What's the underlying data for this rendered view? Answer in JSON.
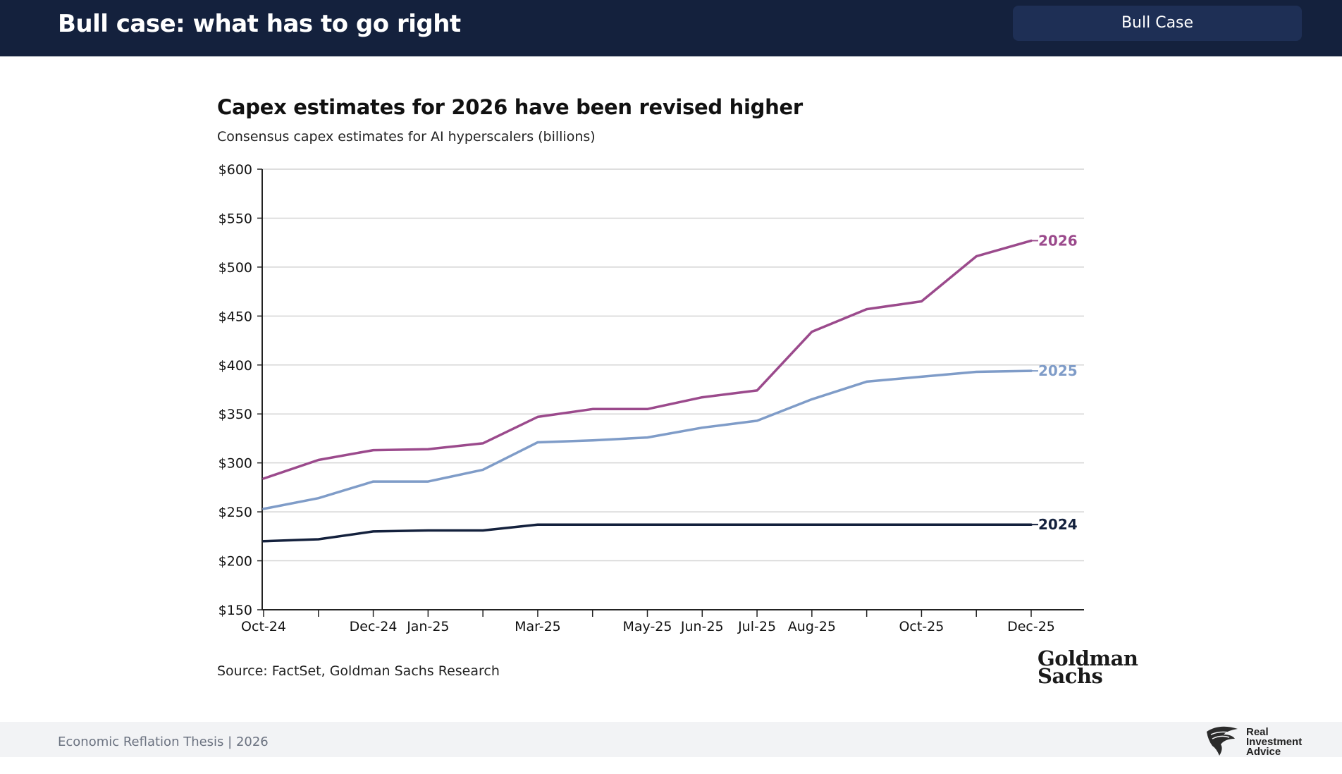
{
  "header": {
    "title": "Bull case: what has to go right",
    "badge_label": "Bull Case",
    "background_color": "#14213d"
  },
  "chart": {
    "title": "Capex estimates for 2026 have been revised higher",
    "subtitle": "Consensus capex estimates for AI hyperscalers (billions)",
    "source": "Source: FactSet, Goldman Sachs Research",
    "logo_lines": [
      "Goldman",
      "Sachs"
    ]
  },
  "chart_data": {
    "type": "line",
    "title": "Capex estimates for 2026 have been revised higher",
    "subtitle": "Consensus capex estimates for AI hyperscalers (billions)",
    "y_tick_labels": [
      "$150",
      "$200",
      "$250",
      "$300",
      "$350",
      "$400",
      "$450",
      "$500",
      "$550",
      "$600"
    ],
    "ylim": [
      150,
      600
    ],
    "y_ticks": [
      150,
      200,
      250,
      300,
      350,
      400,
      450,
      500,
      550,
      600
    ],
    "grid": true,
    "x": [
      "Oct-24",
      "Nov-24",
      "Dec-24",
      "Jan-25",
      "Feb-25",
      "Mar-25",
      "Apr-25",
      "May-25",
      "Jun-25",
      "Jul-25",
      "Aug-25",
      "Sep-25",
      "Oct-25",
      "Nov-25",
      "Dec-25"
    ],
    "x_tick_labels": [
      "Oct-24",
      "",
      "Dec-24",
      "Jan-25",
      "",
      "Mar-25",
      "",
      "May-25",
      "Jun-25",
      "Jul-25",
      "Aug-25",
      "",
      "Oct-25",
      "",
      "Dec-25"
    ],
    "series": [
      {
        "name": "2026",
        "color": "#9b4a8c",
        "values": [
          284,
          303,
          313,
          314,
          320,
          347,
          355,
          355,
          367,
          374,
          434,
          457,
          465,
          511,
          527
        ]
      },
      {
        "name": "2025",
        "color": "#7f9cc8",
        "values": [
          253,
          264,
          281,
          281,
          293,
          321,
          323,
          326,
          336,
          343,
          365,
          383,
          388,
          393,
          394
        ]
      },
      {
        "name": "2024",
        "color": "#14213d",
        "values": [
          220,
          222,
          230,
          231,
          231,
          237,
          237,
          237,
          237,
          237,
          237,
          237,
          237,
          237,
          237
        ]
      }
    ],
    "legend": "inline-right"
  },
  "footer": {
    "text": "Economic Reflation Thesis | 2026",
    "brand_lines": [
      "Real",
      "Investment",
      "Advice"
    ]
  }
}
